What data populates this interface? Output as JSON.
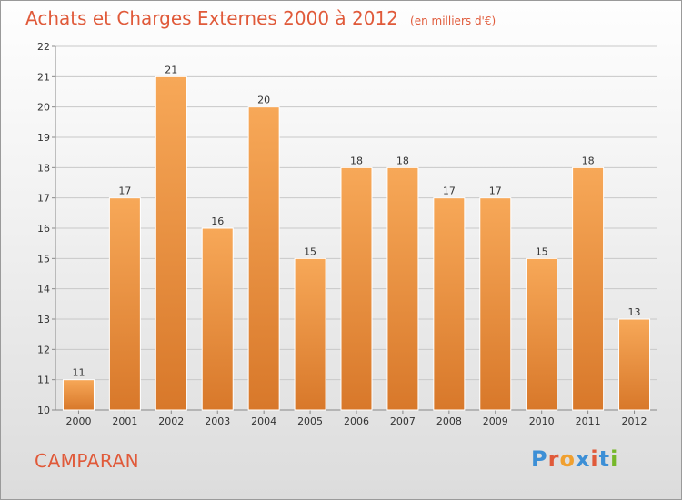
{
  "header": {
    "title": "Achats et Charges Externes 2000 à 2012",
    "unit": "(en milliers d'€)"
  },
  "footer": {
    "commune": "CAMPARAN",
    "logo": "Proxiti"
  },
  "colors": {
    "title": "#e05a3a",
    "bar_top": "#f7a858",
    "bar_bottom": "#d8782a",
    "grid": "#c8c8c8",
    "logo_letters": [
      "#3c8fd6",
      "#e05a3a",
      "#f0a030",
      "#3c8fd6",
      "#e05a3a",
      "#3c8fd6",
      "#76b82a"
    ]
  },
  "chart_data": {
    "type": "bar",
    "title": "Achats et Charges Externes 2000 à 2012",
    "categories": [
      "2000",
      "2001",
      "2002",
      "2003",
      "2004",
      "2005",
      "2006",
      "2007",
      "2008",
      "2009",
      "2010",
      "2011",
      "2012"
    ],
    "values": [
      11,
      17,
      21,
      16,
      20,
      15,
      18,
      18,
      17,
      17,
      15,
      18,
      13
    ],
    "ylim": [
      10,
      22
    ],
    "yticks": [
      10,
      11,
      12,
      13,
      14,
      15,
      16,
      17,
      18,
      19,
      20,
      21,
      22
    ],
    "grid": true,
    "xlabel": "",
    "ylabel": ""
  }
}
